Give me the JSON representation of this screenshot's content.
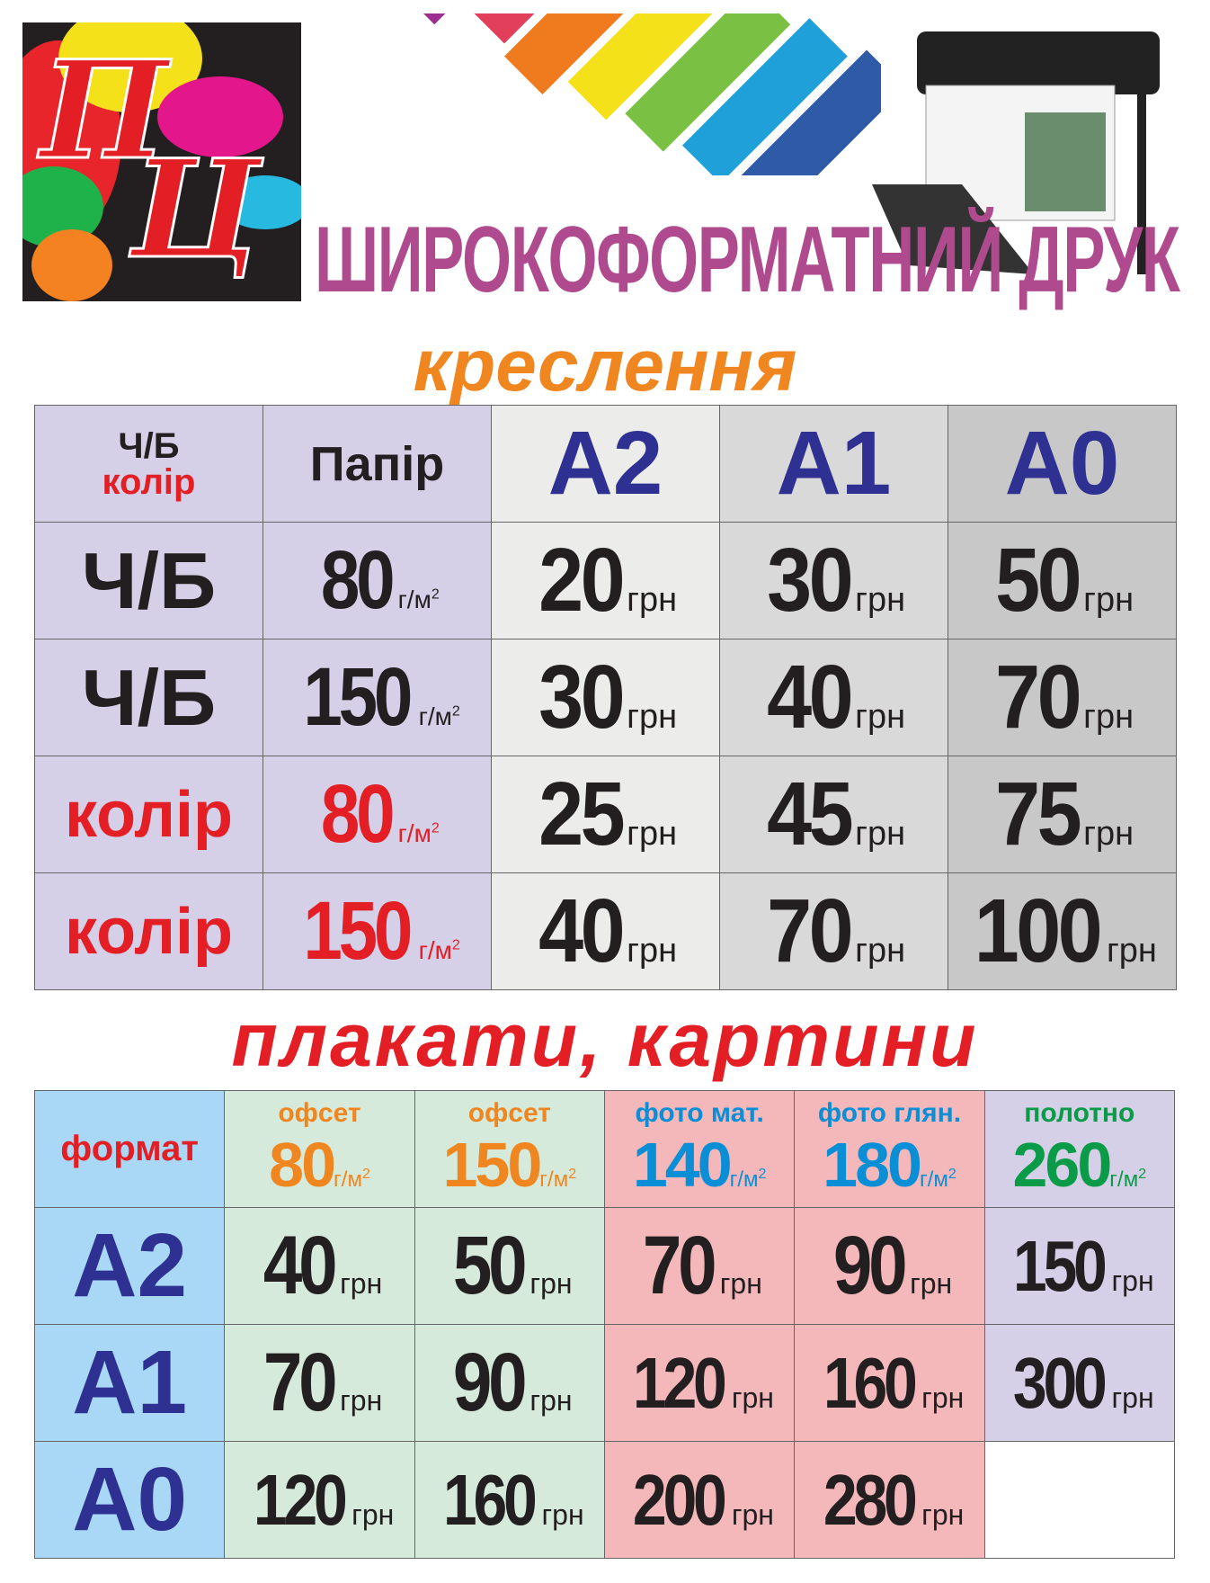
{
  "logo": {
    "monogram": "ПЦ"
  },
  "header": {
    "title": "ШИРОКОФОРМАТНИЙ ДРУК"
  },
  "drawings": {
    "section_title": "креслення",
    "head": {
      "mode_bw": "Ч/Б",
      "mode_color": "колір",
      "paper": "Папір",
      "formats": [
        "A2",
        "A1",
        "A0"
      ]
    },
    "unit_gsm": "г/м",
    "unit_price": "грн",
    "rows": [
      {
        "mode": "Ч/Б",
        "paper": "80",
        "prices": [
          "20",
          "30",
          "50"
        ]
      },
      {
        "mode": "Ч/Б",
        "paper": "150",
        "prices": [
          "30",
          "40",
          "70"
        ]
      },
      {
        "mode": "колір",
        "paper": "80",
        "prices": [
          "25",
          "45",
          "75"
        ]
      },
      {
        "mode": "колір",
        "paper": "150",
        "prices": [
          "40",
          "70",
          "100"
        ]
      }
    ]
  },
  "posters": {
    "section_title": "плакати, картини",
    "format_label": "формат",
    "columns": [
      {
        "name": "офсет",
        "gsm": "80"
      },
      {
        "name": "офсет",
        "gsm": "150"
      },
      {
        "name": "фото мат.",
        "gsm": "140"
      },
      {
        "name": "фото глян.",
        "gsm": "180"
      },
      {
        "name": "полотно",
        "gsm": "260"
      }
    ],
    "rows": [
      {
        "format": "A2",
        "prices": [
          "40",
          "50",
          "70",
          "90",
          "150"
        ]
      },
      {
        "format": "A1",
        "prices": [
          "70",
          "90",
          "120",
          "160",
          "300"
        ]
      },
      {
        "format": "A0",
        "prices": [
          "120",
          "160",
          "200",
          "280",
          ""
        ]
      }
    ]
  },
  "colors": {
    "title": "#b04a8e",
    "drawings_title": "#f0861f",
    "posters_title": "#e31e24",
    "format_text": "#2e3192",
    "color_mode": "#e31e24"
  }
}
